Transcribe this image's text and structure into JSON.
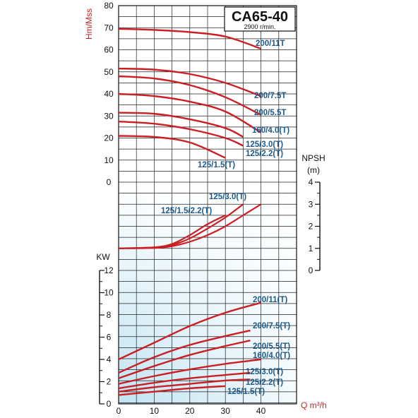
{
  "chart_data": {
    "title": "CA65-40",
    "subtitle": "2900 r/min.",
    "x_axis": {
      "label": "Q m³/h",
      "ticks": [
        "0",
        "10",
        "20",
        "30",
        "40"
      ],
      "range": [
        0,
        50
      ]
    },
    "head_axis": {
      "label": "Hm/Mss",
      "ticks": [
        "0",
        "10",
        "20",
        "30",
        "40",
        "50",
        "60",
        "70",
        "80"
      ],
      "range": [
        0,
        80
      ]
    },
    "npsh_axis": {
      "label": "NPSH",
      "unit": "(m)",
      "ticks": [
        "0",
        "1",
        "2",
        "3",
        "4"
      ],
      "range": [
        0,
        4
      ]
    },
    "power_axis": {
      "label": "KW",
      "ticks": [
        "0",
        "2",
        "4",
        "6",
        "8",
        "10",
        "12"
      ],
      "range": [
        0,
        12
      ]
    },
    "colors": {
      "curve": "#cc1f24",
      "label": "#1b5a8e",
      "axis_label": "#cc1f24",
      "background_gradient": "#bfe3f2"
    },
    "head_curves": [
      {
        "name": "200/11T",
        "x": [
          0,
          10,
          20,
          30,
          40
        ],
        "y": [
          69.5,
          69,
          68,
          66,
          60.5
        ]
      },
      {
        "name": "200/7.5T",
        "x": [
          0,
          10,
          20,
          30,
          40
        ],
        "y": [
          51.5,
          51,
          49,
          45,
          39
        ]
      },
      {
        "name": "200/5.5T",
        "x": [
          0,
          10,
          20,
          30,
          40
        ],
        "y": [
          48,
          47,
          44,
          38.5,
          30.5
        ]
      },
      {
        "name": "160/4.0(T)",
        "x": [
          0,
          10,
          20,
          30,
          40
        ],
        "y": [
          40,
          39,
          36.5,
          32,
          22.5
        ]
      },
      {
        "name": "125/3.0(T)",
        "x": [
          0,
          10,
          20,
          30,
          35
        ],
        "y": [
          31.5,
          31,
          28.5,
          24.5,
          20.5
        ]
      },
      {
        "name": "125/2.2(T)",
        "x": [
          0,
          10,
          20,
          30,
          35
        ],
        "y": [
          27.5,
          26.5,
          24,
          20,
          16.5
        ]
      },
      {
        "name": "125/1.5(T)",
        "x": [
          0,
          10,
          20,
          30
        ],
        "y": [
          21,
          20.5,
          18,
          11
        ]
      }
    ],
    "npsh_curves": [
      {
        "name": "125/1.5/2.2(T)",
        "x": [
          0,
          10,
          15,
          20,
          25,
          30
        ],
        "y": [
          1,
          1.05,
          1.2,
          1.6,
          2.1,
          2.5
        ]
      },
      {
        "name": "125/3.0(T)",
        "x": [
          0,
          10,
          15,
          20,
          25,
          30,
          35
        ],
        "y": [
          1,
          1.04,
          1.15,
          1.45,
          1.9,
          2.4,
          3
        ]
      },
      {
        "name": "",
        "x": [
          0,
          10,
          15,
          20,
          25,
          30,
          35,
          40
        ],
        "y": [
          1,
          1.02,
          1.1,
          1.3,
          1.6,
          2,
          2.5,
          3
        ]
      }
    ],
    "power_curves": [
      {
        "name": "200/11(T)",
        "x": [
          0,
          10,
          20,
          30,
          40
        ],
        "y": [
          4,
          5.5,
          7,
          8.2,
          9.1
        ]
      },
      {
        "name": "200/7.5(T)",
        "x": [
          0,
          10,
          20,
          30,
          37
        ],
        "y": [
          2.8,
          4.2,
          5.3,
          6.1,
          6.6
        ]
      },
      {
        "name": "200/5.5(T)",
        "x": [
          0,
          10,
          20,
          30,
          37
        ],
        "y": [
          2.3,
          3.4,
          4.4,
          5.2,
          5.7
        ]
      },
      {
        "name": "160/4.0(T)",
        "x": [
          0,
          10,
          20,
          30,
          40
        ],
        "y": [
          1.8,
          2.5,
          3.1,
          3.6,
          4
        ]
      },
      {
        "name": "125/3.0(T)",
        "x": [
          0,
          10,
          20,
          30,
          37
        ],
        "y": [
          1.4,
          1.9,
          2.3,
          2.6,
          2.8
        ]
      },
      {
        "name": "125/2.2(T)",
        "x": [
          0,
          10,
          20,
          30,
          37
        ],
        "y": [
          1.1,
          1.5,
          1.8,
          2.1,
          2.2
        ]
      },
      {
        "name": "125/1.5(T)",
        "x": [
          0,
          10,
          20,
          30
        ],
        "y": [
          0.8,
          1.1,
          1.4,
          1.6
        ]
      }
    ],
    "grid": true
  }
}
